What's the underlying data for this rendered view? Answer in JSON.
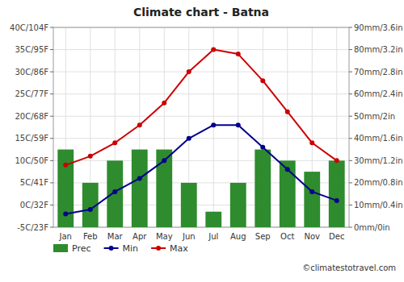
{
  "chart_data": {
    "type": "bar",
    "title": "Climate chart - Batna",
    "categories": [
      "Jan",
      "Feb",
      "Mar",
      "Apr",
      "May",
      "Jun",
      "Jul",
      "Aug",
      "Sep",
      "Oct",
      "Nov",
      "Dec"
    ],
    "series": [
      {
        "name": "Prec",
        "type": "bar",
        "axis": "y2",
        "color": "#2e8b2e",
        "values": [
          35,
          20,
          30,
          35,
          35,
          20,
          7,
          20,
          35,
          30,
          25,
          30
        ]
      },
      {
        "name": "Min",
        "type": "line",
        "color": "#00008b",
        "marker": "circle",
        "values": [
          -2,
          -1,
          3,
          6,
          10,
          15,
          18,
          18,
          13,
          8,
          3,
          1
        ]
      },
      {
        "name": "Max",
        "type": "line",
        "color": "#cc0000",
        "marker": "circle",
        "values": [
          9,
          11,
          14,
          18,
          23,
          30,
          35,
          34,
          28,
          21,
          14,
          10
        ]
      }
    ],
    "ylim": [
      -5,
      40
    ],
    "yticks": [
      {
        "value": -5,
        "label": "-5C/23F"
      },
      {
        "value": 0,
        "label": "0C/32F"
      },
      {
        "value": 5,
        "label": "5C/41F"
      },
      {
        "value": 10,
        "label": "10C/50F"
      },
      {
        "value": 15,
        "label": "15C/59F"
      },
      {
        "value": 20,
        "label": "20C/68F"
      },
      {
        "value": 25,
        "label": "25C/77F"
      },
      {
        "value": 30,
        "label": "30C/86F"
      },
      {
        "value": 35,
        "label": "35C/95F"
      },
      {
        "value": 40,
        "label": "40C/104F"
      }
    ],
    "y2lim": [
      0,
      90
    ],
    "y2ticks": [
      {
        "value": 0,
        "label": "0mm/0in"
      },
      {
        "value": 10,
        "label": "10mm/0.4in"
      },
      {
        "value": 20,
        "label": "20mm/0.8in"
      },
      {
        "value": 30,
        "label": "30mm/1.2in"
      },
      {
        "value": 40,
        "label": "40mm/1.6in"
      },
      {
        "value": 50,
        "label": "50mm/2in"
      },
      {
        "value": 60,
        "label": "60mm/2.4in"
      },
      {
        "value": 70,
        "label": "70mm/2.8in"
      },
      {
        "value": 80,
        "label": "80mm/3.2in"
      },
      {
        "value": 90,
        "label": "90mm/3.6in"
      }
    ],
    "grid": true,
    "legend": "bottom-left",
    "annotations": [
      "©climatestotravel.com"
    ]
  }
}
